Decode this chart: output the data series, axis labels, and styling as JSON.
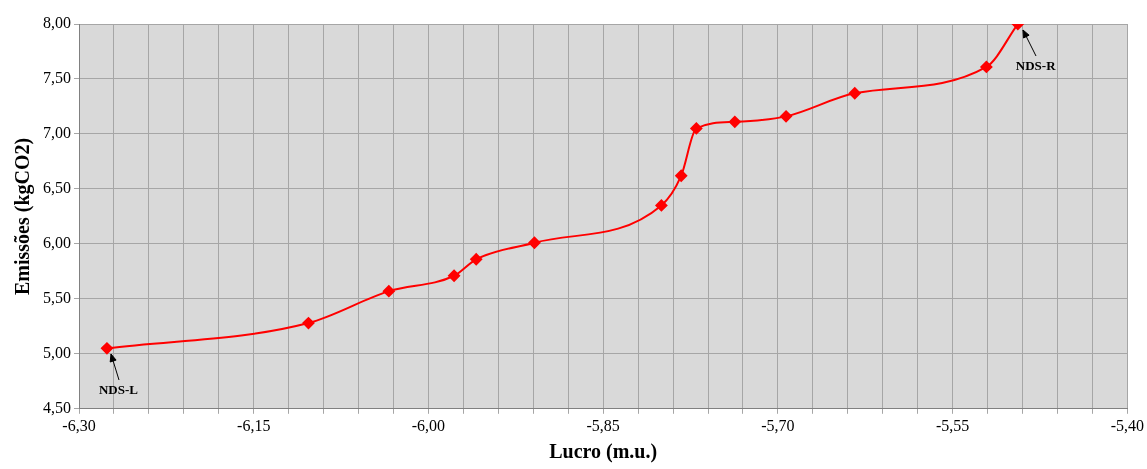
{
  "chart_data": {
    "type": "line",
    "xlabel": "Lucro (m.u.)",
    "ylabel": "Emissões (kgCO2)",
    "x": [
      -6.276,
      -6.103,
      -6.034,
      -5.978,
      -5.959,
      -5.909,
      -5.8,
      -5.783,
      -5.77,
      -5.737,
      -5.693,
      -5.634,
      -5.521,
      -5.494
    ],
    "series": [
      {
        "color": "#ff0000",
        "values": [
          5.05,
          5.28,
          5.57,
          5.71,
          5.86,
          6.01,
          6.35,
          6.62,
          7.05,
          7.11,
          7.16,
          7.37,
          7.61,
          8.0
        ]
      }
    ],
    "xlim": [
      -6.3,
      -5.4
    ],
    "xticks": [
      {
        "value": -6.3,
        "label": "-6,30"
      },
      {
        "value": -6.27,
        "label": null
      },
      {
        "value": -6.24,
        "label": null
      },
      {
        "value": -6.21,
        "label": null
      },
      {
        "value": -6.18,
        "label": null
      },
      {
        "value": -6.15,
        "label": "-6,15"
      },
      {
        "value": -6.12,
        "label": null
      },
      {
        "value": -6.09,
        "label": null
      },
      {
        "value": -6.06,
        "label": null
      },
      {
        "value": -6.03,
        "label": null
      },
      {
        "value": -6.0,
        "label": "-6,00"
      },
      {
        "value": -5.97,
        "label": null
      },
      {
        "value": -5.94,
        "label": null
      },
      {
        "value": -5.91,
        "label": null
      },
      {
        "value": -5.88,
        "label": null
      },
      {
        "value": -5.85,
        "label": "-5,85"
      },
      {
        "value": -5.82,
        "label": null
      },
      {
        "value": -5.79,
        "label": null
      },
      {
        "value": -5.76,
        "label": null
      },
      {
        "value": -5.73,
        "label": null
      },
      {
        "value": -5.7,
        "label": "-5,70"
      },
      {
        "value": -5.67,
        "label": null
      },
      {
        "value": -5.64,
        "label": null
      },
      {
        "value": -5.61,
        "label": null
      },
      {
        "value": -5.58,
        "label": null
      },
      {
        "value": -5.55,
        "label": "-5,55"
      },
      {
        "value": -5.52,
        "label": null
      },
      {
        "value": -5.49,
        "label": null
      },
      {
        "value": -5.46,
        "label": null
      },
      {
        "value": -5.43,
        "label": null
      },
      {
        "value": -5.4,
        "label": "-5,40"
      }
    ],
    "ylim": [
      4.5,
      8.0
    ],
    "yticks": [
      {
        "value": 4.5,
        "label": "4,50"
      },
      {
        "value": 5.0,
        "label": "5,00"
      },
      {
        "value": 5.5,
        "label": "5,50"
      },
      {
        "value": 6.0,
        "label": "6,00"
      },
      {
        "value": 6.5,
        "label": "6,50"
      },
      {
        "value": 7.0,
        "label": "7,00"
      },
      {
        "value": 7.5,
        "label": "7,50"
      },
      {
        "value": 8.0,
        "label": "8,00"
      }
    ],
    "grid": true,
    "legend": false,
    "marker": "diamond",
    "line_style": "solid",
    "annotations": [
      {
        "text": "NDS-L",
        "x": -6.276,
        "y": 5.05
      },
      {
        "text": "NDS-R",
        "x": -5.494,
        "y": 8.0
      }
    ]
  }
}
